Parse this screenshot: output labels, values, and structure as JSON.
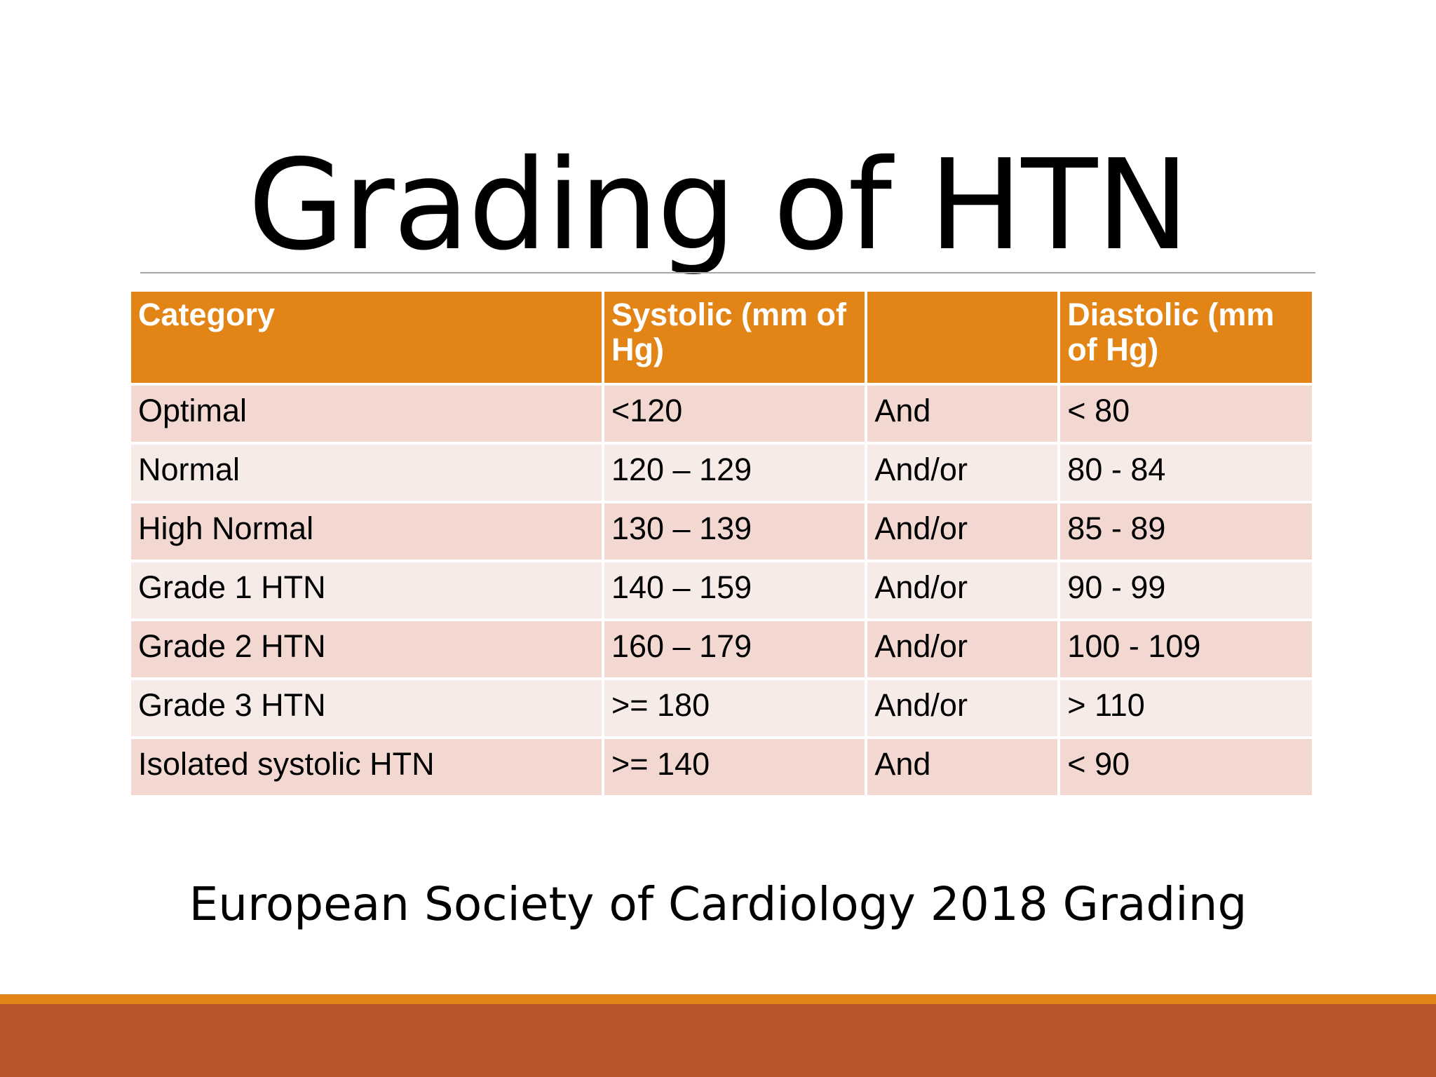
{
  "slide": {
    "title": "Grading of HTN",
    "caption": "European Society of Cardiology 2018 Grading"
  },
  "colors": {
    "header_bg": "#e38416",
    "row_odd_bg": "#f2d8d0",
    "row_even_bg": "#f7ebe7",
    "footer_line": "#e38416",
    "footer_band": "#bb562a"
  },
  "table": {
    "headers": [
      "Category",
      "Systolic (mm of Hg)",
      "",
      "Diastolic (mm of Hg)"
    ],
    "rows": [
      [
        "Optimal",
        "<120",
        "And",
        "< 80"
      ],
      [
        "Normal",
        "120 – 129",
        "And/or",
        "80 - 84"
      ],
      [
        "High Normal",
        "130 – 139",
        "And/or",
        "85 - 89"
      ],
      [
        "Grade 1 HTN",
        "140 – 159",
        "And/or",
        "90 - 99"
      ],
      [
        "Grade 2 HTN",
        "160 – 179",
        "And/or",
        "100 - 109"
      ],
      [
        "Grade 3 HTN",
        ">= 180",
        "And/or",
        "> 110"
      ],
      [
        "Isolated systolic HTN",
        ">= 140",
        "And",
        "< 90"
      ]
    ]
  }
}
